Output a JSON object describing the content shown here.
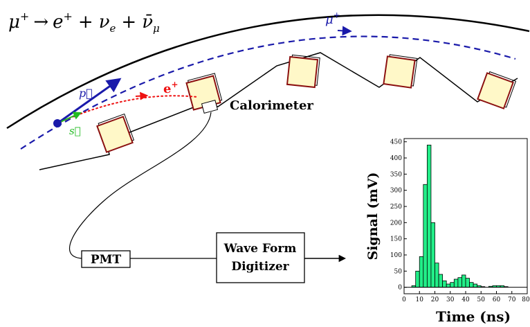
{
  "equation": {
    "lhs": "μ",
    "lhs_sup": "+",
    "arrow": "→",
    "e": "e",
    "e_sup": "+",
    "plus1": "+",
    "nu": "ν",
    "nu_sub": "e",
    "plus2": "+",
    "nubar": "ν̄",
    "nubar_sub": "μ"
  },
  "labels": {
    "muon_orbit": "μ",
    "muon_orbit_sup": "+",
    "momentum": "p⃗",
    "spin": "s⃗",
    "positron": "e",
    "positron_sup": "+",
    "calorimeter": "Calorimeter",
    "pmt": "PMT",
    "digitizer_line1": "Wave Form",
    "digitizer_line2": "Digitizer"
  },
  "colors": {
    "muon_orbit": "#1a1aaa",
    "momentum": "#1a1aaa",
    "spin": "#22bb22",
    "positron": "#ee1111",
    "calorimeter_fill": "#fff8c8",
    "calorimeter_edge": "#8b1010",
    "bars": "#22ee88"
  },
  "chart_data": {
    "type": "bar",
    "xlabel": "Time (ns)",
    "ylabel": "Signal (mV)",
    "xlim": [
      0,
      80
    ],
    "ylim": [
      -20,
      460
    ],
    "xticks": [
      0,
      10,
      20,
      30,
      40,
      50,
      60,
      70,
      80
    ],
    "yticks": [
      0,
      50,
      100,
      150,
      200,
      250,
      300,
      350,
      400,
      450
    ],
    "bin_width": 2.5,
    "x": [
      5,
      7.5,
      10,
      12.5,
      15,
      17.5,
      20,
      22.5,
      25,
      27.5,
      30,
      32.5,
      35,
      37.5,
      40,
      42.5,
      45,
      47.5,
      50,
      52.5,
      55,
      57.5,
      60,
      62.5,
      65,
      67.5,
      70,
      72.5,
      75
    ],
    "values": [
      5,
      50,
      95,
      318,
      440,
      200,
      75,
      40,
      20,
      10,
      15,
      25,
      30,
      38,
      28,
      15,
      10,
      5,
      2,
      0,
      3,
      5,
      5,
      5,
      2,
      0,
      0,
      0,
      0
    ]
  }
}
